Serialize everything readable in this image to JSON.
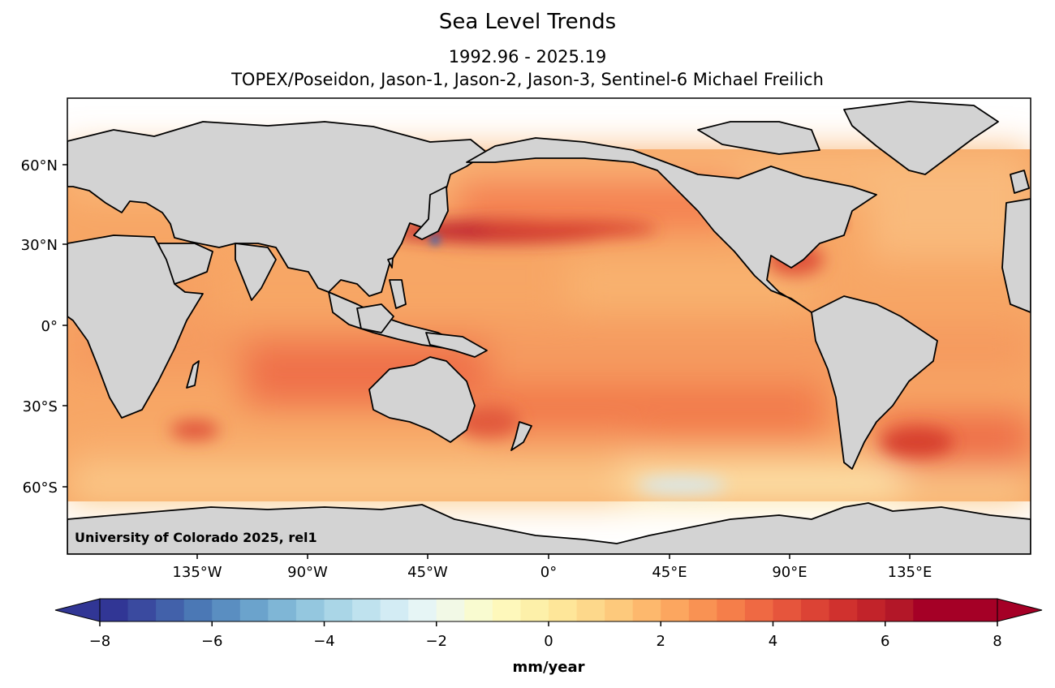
{
  "title": "Sea Level Trends",
  "subtitle_period": "1992.96 - 2025.19",
  "subtitle_missions": "TOPEX/Poseidon, Jason-1, Jason-2, Jason-3, Sentinel-6 Michael Freilich",
  "credit": "University of Colorado 2025, rel1",
  "map": {
    "projection": "plate-carree",
    "central_longitude": 180,
    "lat_ticks": [
      "60°N",
      "30°N",
      "0°",
      "30°S",
      "60°S"
    ],
    "lon_ticks": [
      "135°W",
      "90°W",
      "45°W",
      "0°",
      "45°E",
      "90°E",
      "135°E"
    ],
    "land_color": "#d3d3d3",
    "data_lat_range": [
      -66,
      66
    ],
    "grid": false
  },
  "colorbar": {
    "label": "mm/year",
    "min": -8,
    "max": 8,
    "step": 0.5,
    "ticks": [
      "−8",
      "−6",
      "−4",
      "−2",
      "0",
      "2",
      "4",
      "6",
      "8"
    ],
    "extend": "both",
    "colormap": "RdYlBu_r"
  }
}
